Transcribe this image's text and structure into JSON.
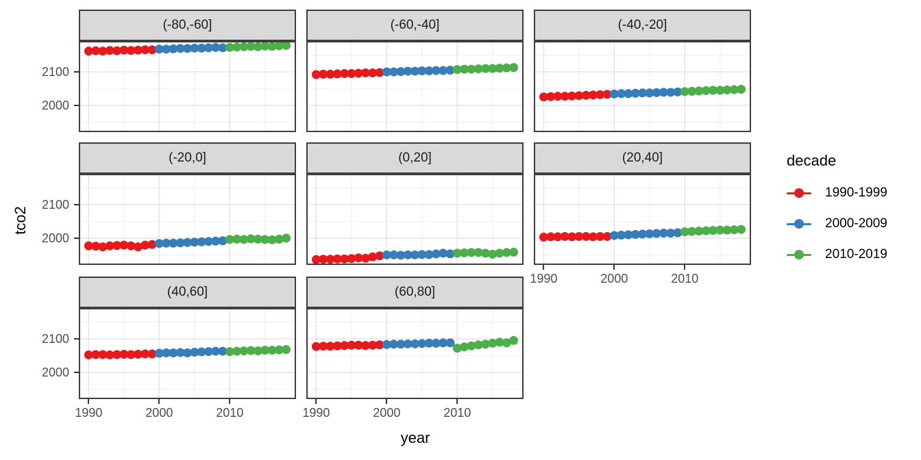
{
  "figure": {
    "x_axis_title": "year",
    "y_axis_title": "tco2"
  },
  "chart_data": {
    "type": "scatter",
    "title": "",
    "xlabel": "year",
    "ylabel": "tco2",
    "xlim": [
      1988.6,
      2019.4
    ],
    "ylim": [
      1920,
      2192
    ],
    "grid": "on",
    "x_ticks": [
      1990,
      2000,
      2010
    ],
    "x_tick_labels": [
      "1990",
      "2000",
      "2010"
    ],
    "y_ticks": [
      2000,
      2100
    ],
    "y_tick_labels": [
      "2000",
      "2100"
    ],
    "x_minor": [
      1995,
      2005,
      2015
    ],
    "y_minor": [
      1950,
      2050,
      2150
    ],
    "years": [
      1990,
      1991,
      1992,
      1993,
      1994,
      1995,
      1996,
      1997,
      1998,
      1999,
      2000,
      2001,
      2002,
      2003,
      2004,
      2005,
      2006,
      2007,
      2008,
      2009,
      2010,
      2011,
      2012,
      2013,
      2014,
      2015,
      2016,
      2017,
      2018
    ],
    "legend": {
      "title": "decade",
      "position": "right"
    },
    "decades": [
      {
        "label": "1990-1999",
        "from": 1990,
        "to": 1999,
        "color": "#E41A1C"
      },
      {
        "label": "2000-2009",
        "from": 2000,
        "to": 2009,
        "color": "#377EB8"
      },
      {
        "label": "2010-2019",
        "from": 2010,
        "to": 2019,
        "color": "#4DAF4A"
      }
    ],
    "facets": [
      {
        "label": "(-80,-60]",
        "values": [
          2162,
          2163,
          2162,
          2164,
          2163,
          2165,
          2164,
          2165,
          2166,
          2166,
          2168,
          2168,
          2169,
          2170,
          2170,
          2171,
          2171,
          2172,
          2173,
          2172,
          2173,
          2174,
          2175,
          2176,
          2175,
          2177,
          2176,
          2178,
          2179
        ]
      },
      {
        "label": "(-60,-40]",
        "values": [
          2092,
          2093,
          2093,
          2094,
          2095,
          2095,
          2096,
          2097,
          2097,
          2098,
          2100,
          2100,
          2101,
          2102,
          2102,
          2103,
          2103,
          2104,
          2104,
          2105,
          2107,
          2108,
          2108,
          2109,
          2110,
          2110,
          2111,
          2112,
          2113
        ]
      },
      {
        "label": "(-40,-20]",
        "values": [
          2025,
          2026,
          2027,
          2027,
          2028,
          2029,
          2030,
          2031,
          2032,
          2033,
          2034,
          2035,
          2035,
          2036,
          2037,
          2037,
          2038,
          2039,
          2039,
          2040,
          2041,
          2042,
          2043,
          2044,
          2045,
          2045,
          2046,
          2047,
          2048
        ]
      },
      {
        "label": "(-20,0]",
        "values": [
          1977,
          1976,
          1974,
          1977,
          1978,
          1979,
          1977,
          1974,
          1979,
          1981,
          1984,
          1985,
          1985,
          1986,
          1987,
          1988,
          1989,
          1990,
          1991,
          1992,
          1996,
          1997,
          1996,
          1998,
          1997,
          1996,
          1995,
          1997,
          2000
        ]
      },
      {
        "label": "(0,20]",
        "values": [
          1936,
          1937,
          1937,
          1938,
          1938,
          1939,
          1941,
          1940,
          1944,
          1947,
          1950,
          1950,
          1949,
          1950,
          1950,
          1951,
          1951,
          1953,
          1955,
          1953,
          1955,
          1956,
          1957,
          1957,
          1955,
          1952,
          1955,
          1957,
          1958
        ]
      },
      {
        "label": "(20,40]",
        "values": [
          2003,
          2004,
          2004,
          2005,
          2004,
          2005,
          2005,
          2004,
          2005,
          2005,
          2008,
          2009,
          2010,
          2011,
          2012,
          2013,
          2014,
          2015,
          2015,
          2016,
          2019,
          2020,
          2021,
          2022,
          2023,
          2024,
          2024,
          2025,
          2026
        ]
      },
      {
        "label": "(40,60]",
        "values": [
          2052,
          2053,
          2053,
          2052,
          2053,
          2054,
          2053,
          2054,
          2055,
          2055,
          2057,
          2058,
          2058,
          2059,
          2058,
          2060,
          2061,
          2062,
          2063,
          2063,
          2062,
          2063,
          2064,
          2065,
          2064,
          2066,
          2066,
          2067,
          2068
        ]
      },
      {
        "label": "(60,80]",
        "values": [
          2077,
          2078,
          2078,
          2079,
          2080,
          2081,
          2081,
          2080,
          2081,
          2082,
          2083,
          2084,
          2084,
          2085,
          2085,
          2086,
          2087,
          2087,
          2088,
          2088,
          2072,
          2076,
          2079,
          2082,
          2084,
          2087,
          2090,
          2088,
          2095
        ]
      }
    ],
    "colors": {
      "strip_bg": "#D9D9D9",
      "panel_border": "#3d3d3d",
      "grid_major": "#E3E3E3",
      "grid_minor": "#F1F1F1",
      "tick": "#333333",
      "tick_label": "#4d4d4d"
    }
  }
}
